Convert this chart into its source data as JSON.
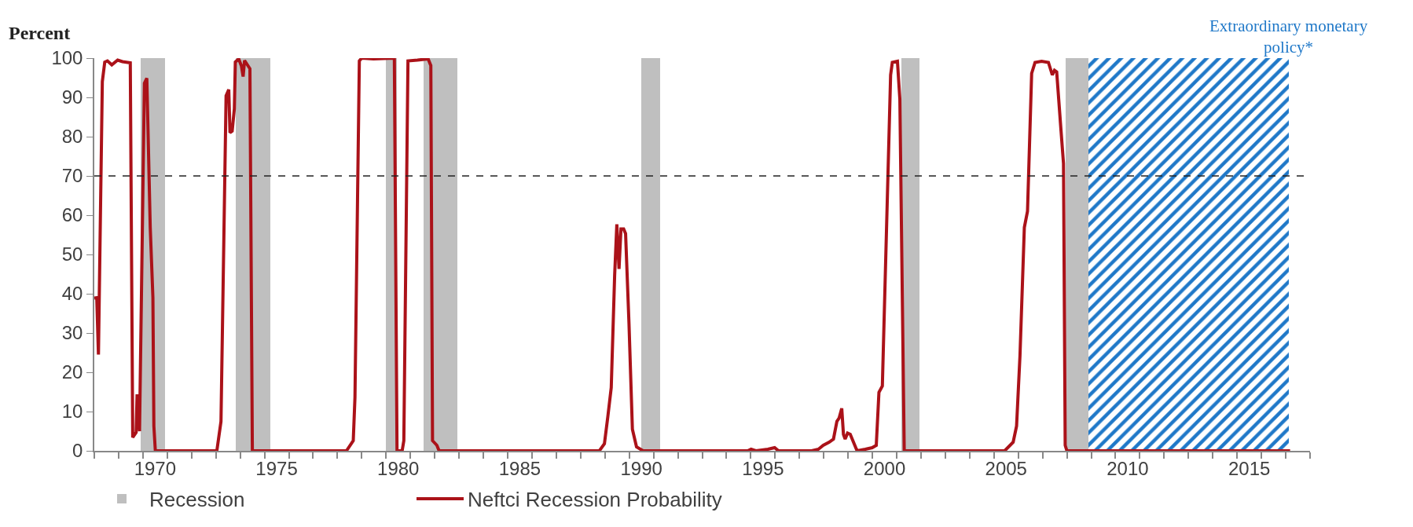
{
  "chart_data": {
    "type": "line",
    "ylabel": "Percent",
    "x": [
      1968.0,
      1968.1,
      1968.17,
      1968.33,
      1968.43,
      1968.54,
      1968.72,
      1968.96,
      1969.16,
      1969.48,
      1969.58,
      1969.72,
      1969.76,
      1969.86,
      1970.06,
      1970.16,
      1970.3,
      1970.41,
      1970.45,
      1970.51,
      1973.04,
      1973.21,
      1973.42,
      1973.53,
      1973.58,
      1973.67,
      1973.76,
      1973.8,
      1973.94,
      1974.05,
      1974.12,
      1974.18,
      1974.4,
      1974.5,
      1978.37,
      1978.65,
      1978.72,
      1978.9,
      1979.0,
      1979.48,
      1980.34,
      1980.45,
      1980.66,
      1980.73,
      1980.9,
      1981.29,
      1981.73,
      1981.84,
      1981.91,
      1982.09,
      1982.18,
      1988.77,
      1988.98,
      1989.12,
      1989.26,
      1989.4,
      1989.49,
      1989.58,
      1989.66,
      1989.77,
      1989.85,
      1989.99,
      1990.13,
      1990.3,
      1990.57,
      1994.87,
      1995.01,
      1995.21,
      1995.7,
      1995.98,
      1996.14,
      1997.5,
      1997.78,
      1997.98,
      1998.22,
      1998.4,
      1998.54,
      1998.63,
      1998.74,
      1998.81,
      1998.88,
      1998.98,
      1999.09,
      1999.37,
      1999.71,
      1999.99,
      2000.16,
      2000.27,
      2000.41,
      2000.75,
      2000.82,
      2001.03,
      2001.13,
      2001.31,
      2005.44,
      2005.79,
      2005.93,
      2006.07,
      2006.25,
      2006.38,
      2006.55,
      2006.69,
      2006.96,
      2007.24,
      2007.4,
      2007.49,
      2007.58,
      2007.76,
      2007.86,
      2007.93,
      2008.0,
      2017.18
    ],
    "series": [
      {
        "name": "Neftci Recession Probability",
        "color": "#ab1219",
        "values": [
          38.9,
          39,
          24.5,
          94,
          99,
          99.3,
          98.3,
          99.5,
          99.1,
          98.8,
          3.4,
          4.7,
          14.4,
          5,
          93.6,
          94.9,
          57,
          39,
          6.3,
          0,
          0,
          7.5,
          90.4,
          92,
          81,
          81.4,
          87.1,
          99,
          99.8,
          98,
          95.3,
          99.4,
          97.3,
          0,
          0,
          2.6,
          13.6,
          99.3,
          100,
          99.8,
          100,
          0,
          0,
          2.6,
          99.3,
          99.5,
          99.8,
          98.1,
          2.6,
          1.4,
          0,
          0,
          1.8,
          8.7,
          16.1,
          44.7,
          57.7,
          46.3,
          56.5,
          56.5,
          55.3,
          32.4,
          5.5,
          1,
          0,
          0,
          0.4,
          0,
          0.4,
          0.8,
          0,
          0,
          0.4,
          1.4,
          2.2,
          3,
          7.5,
          8.3,
          10.8,
          4.2,
          3,
          4.5,
          4.2,
          0,
          0.4,
          0.8,
          1.4,
          14.9,
          16.5,
          95.7,
          98.9,
          99.2,
          89.6,
          0,
          0,
          2.2,
          6.3,
          24.2,
          56.9,
          61,
          96.1,
          98.9,
          99.2,
          98.9,
          95.7,
          96.9,
          96.5,
          81.4,
          73.2,
          1.4,
          0,
          0
        ]
      }
    ],
    "xlim": [
      1968,
      2018
    ],
    "xticks": [
      {
        "value": 1968,
        "label": null
      },
      {
        "value": 1969,
        "label": null
      },
      {
        "value": 1970,
        "label": null
      },
      {
        "value": 1970.5,
        "label": "1970"
      },
      {
        "value": 1971,
        "label": null
      },
      {
        "value": 1972,
        "label": null
      },
      {
        "value": 1973,
        "label": null
      },
      {
        "value": 1974,
        "label": null
      },
      {
        "value": 1975,
        "label": null
      },
      {
        "value": 1975.5,
        "label": "1975"
      },
      {
        "value": 1976,
        "label": null
      },
      {
        "value": 1977,
        "label": null
      },
      {
        "value": 1978,
        "label": null
      },
      {
        "value": 1979,
        "label": null
      },
      {
        "value": 1980,
        "label": null
      },
      {
        "value": 1980.5,
        "label": "1980"
      },
      {
        "value": 1981,
        "label": null
      },
      {
        "value": 1982,
        "label": null
      },
      {
        "value": 1983,
        "label": null
      },
      {
        "value": 1984,
        "label": null
      },
      {
        "value": 1985,
        "label": null
      },
      {
        "value": 1985.5,
        "label": "1985"
      },
      {
        "value": 1986,
        "label": null
      },
      {
        "value": 1987,
        "label": null
      },
      {
        "value": 1988,
        "label": null
      },
      {
        "value": 1989,
        "label": null
      },
      {
        "value": 1990,
        "label": null
      },
      {
        "value": 1990.5,
        "label": "1990"
      },
      {
        "value": 1991,
        "label": null
      },
      {
        "value": 1992,
        "label": null
      },
      {
        "value": 1993,
        "label": null
      },
      {
        "value": 1994,
        "label": null
      },
      {
        "value": 1995,
        "label": null
      },
      {
        "value": 1995.5,
        "label": "1995"
      },
      {
        "value": 1996,
        "label": null
      },
      {
        "value": 1997,
        "label": null
      },
      {
        "value": 1998,
        "label": null
      },
      {
        "value": 1999,
        "label": null
      },
      {
        "value": 2000,
        "label": null
      },
      {
        "value": 2000.5,
        "label": "2000"
      },
      {
        "value": 2001,
        "label": null
      },
      {
        "value": 2002,
        "label": null
      },
      {
        "value": 2003,
        "label": null
      },
      {
        "value": 2004,
        "label": null
      },
      {
        "value": 2005,
        "label": null
      },
      {
        "value": 2005.5,
        "label": "2005"
      },
      {
        "value": 2006,
        "label": null
      },
      {
        "value": 2007,
        "label": null
      },
      {
        "value": 2008,
        "label": null
      },
      {
        "value": 2009,
        "label": null
      },
      {
        "value": 2010,
        "label": null
      },
      {
        "value": 2010.5,
        "label": "2010"
      },
      {
        "value": 2011,
        "label": null
      },
      {
        "value": 2012,
        "label": null
      },
      {
        "value": 2013,
        "label": null
      },
      {
        "value": 2014,
        "label": null
      },
      {
        "value": 2015,
        "label": null
      },
      {
        "value": 2015.5,
        "label": "2015"
      },
      {
        "value": 2016,
        "label": null
      },
      {
        "value": 2017,
        "label": null
      },
      {
        "value": 2018,
        "label": null
      }
    ],
    "ylim": [
      0,
      100
    ],
    "yticks": [
      0,
      10,
      20,
      30,
      40,
      50,
      60,
      70,
      80,
      90,
      100
    ],
    "ref_lines": [
      {
        "axis": "y",
        "value": 70,
        "color": "#222222",
        "line_style": "dashed"
      }
    ],
    "bands": [
      {
        "axis": "x",
        "from": 1969.9,
        "to": 1970.9,
        "label": "Recession",
        "color": "#bfbfbf"
      },
      {
        "axis": "x",
        "from": 1973.83,
        "to": 1975.25,
        "color": "#bfbfbf"
      },
      {
        "axis": "x",
        "from": 1979.98,
        "to": 1980.44,
        "color": "#bfbfbf"
      },
      {
        "axis": "x",
        "from": 1981.53,
        "to": 1982.94,
        "color": "#bfbfbf"
      },
      {
        "axis": "x",
        "from": 1990.5,
        "to": 1991.27,
        "color": "#bfbfbf"
      },
      {
        "axis": "x",
        "from": 2001.19,
        "to": 2001.93,
        "color": "#bfbfbf"
      },
      {
        "axis": "x",
        "from": 2007.94,
        "to": 2009.54,
        "color": "#bfbfbf"
      },
      {
        "axis": "x",
        "from": 2008.9,
        "to": 2017.12,
        "label": "Extraordinary monetary policy*",
        "color": "#1f78c8"
      }
    ],
    "legend": "bottom left",
    "marker": "none",
    "line_style": "solid"
  }
}
